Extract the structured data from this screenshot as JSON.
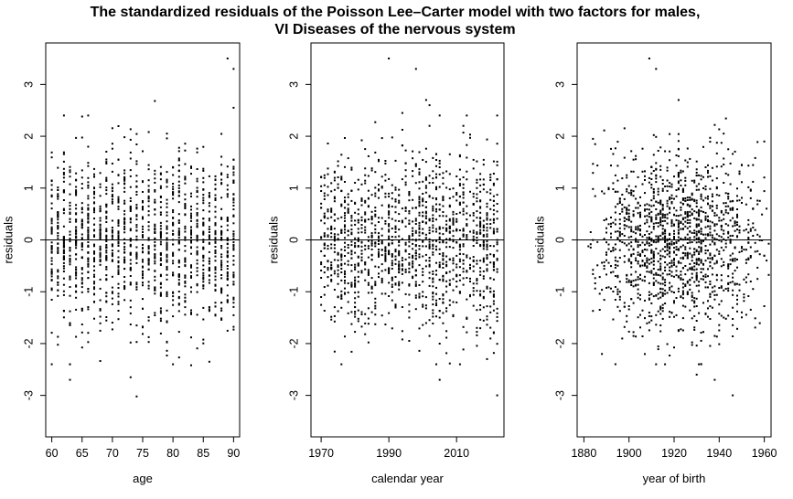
{
  "chart_data": {
    "type": "scatter",
    "title_line1": "The standardized residuals of the Poisson Lee–Carter model with two factors for males,",
    "title_line2": "VI Diseases of the nervous system",
    "ylabel": "residuals",
    "ylim": [
      -3.8,
      3.8
    ],
    "yticks": [
      -3,
      -2,
      -1,
      0,
      1,
      2,
      3
    ],
    "reference_line_y": 0,
    "point_color": "#000000",
    "panels": [
      {
        "xlabel": "age",
        "xlim": [
          59,
          91
        ],
        "xticks": [
          60,
          65,
          70,
          75,
          80,
          85,
          90
        ],
        "x_generator": "age",
        "x_range": [
          60,
          90
        ],
        "notable_points": [
          {
            "x": 74,
            "y": -3.02
          },
          {
            "x": 63,
            "y": -2.7
          },
          {
            "x": 89,
            "y": 3.5
          },
          {
            "x": 90,
            "y": 3.3
          },
          {
            "x": 77,
            "y": 2.68
          },
          {
            "x": 73,
            "y": -2.65
          },
          {
            "x": 90,
            "y": 2.55
          },
          {
            "x": 62,
            "y": 2.4
          },
          {
            "x": 65,
            "y": 2.38
          },
          {
            "x": 83,
            "y": -2.42
          },
          {
            "x": 86,
            "y": -2.35
          }
        ]
      },
      {
        "xlabel": "calendar year",
        "xlim": [
          1967,
          2024
        ],
        "xticks": [
          1970,
          1990,
          2010
        ],
        "x_generator": "calendar",
        "x_range": [
          1970,
          2022
        ],
        "notable_points": [
          {
            "x": 1990,
            "y": 3.5
          },
          {
            "x": 1998,
            "y": 3.3
          },
          {
            "x": 2001,
            "y": 2.7
          },
          {
            "x": 2022,
            "y": -3.0
          },
          {
            "x": 2002,
            "y": 2.6
          },
          {
            "x": 2012,
            "y": 2.2
          },
          {
            "x": 1994,
            "y": 2.45
          },
          {
            "x": 2005,
            "y": -2.7
          },
          {
            "x": 1976,
            "y": -2.4
          },
          {
            "x": 2019,
            "y": -2.3
          }
        ]
      },
      {
        "xlabel": "year of birth",
        "xlim": [
          1877,
          1963
        ],
        "xticks": [
          1880,
          1900,
          1920,
          1940,
          1960
        ],
        "x_generator": "cohort",
        "x_range": [
          1880,
          1962
        ],
        "notable_points": [
          {
            "x": 1909,
            "y": 3.5
          },
          {
            "x": 1912,
            "y": 3.3
          },
          {
            "x": 1946,
            "y": -3.0
          },
          {
            "x": 1938,
            "y": -2.7
          },
          {
            "x": 1960,
            "y": 1.9
          },
          {
            "x": 1884,
            "y": 1.95
          },
          {
            "x": 1888,
            "y": -2.2
          },
          {
            "x": 1922,
            "y": 2.7
          },
          {
            "x": 1930,
            "y": -2.6
          }
        ]
      }
    ]
  }
}
